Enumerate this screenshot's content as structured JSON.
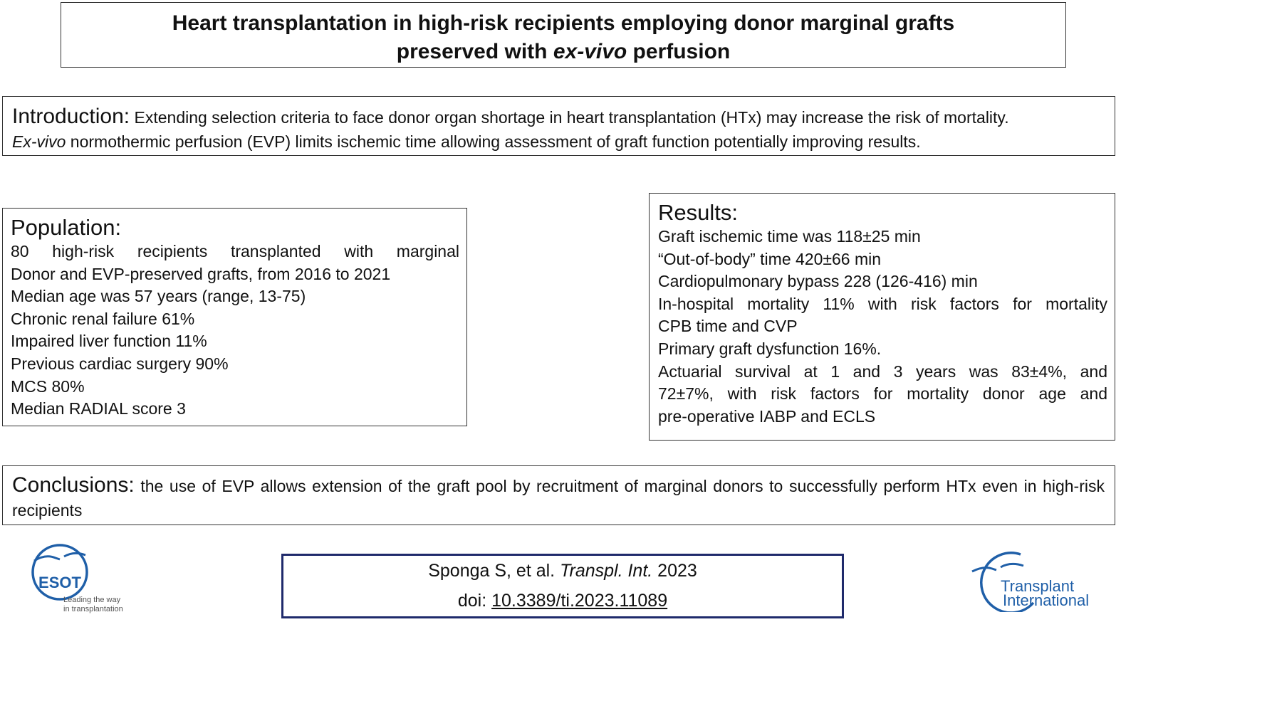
{
  "title": {
    "line1": "Heart transplantation in high-risk recipients employing donor marginal grafts",
    "line2_pre": "preserved with ",
    "line2_em": "ex-vivo",
    "line2_post": " perfusion"
  },
  "introduction": {
    "heading": "Introduction:",
    "text1": " Extending selection criteria to face donor organ shortage in heart transplantation (HTx) may increase the risk of mortality.",
    "text2_em": "Ex-vivo",
    "text2": " normothermic perfusion (EVP) limits ischemic time allowing assessment of graft function potentially improving results."
  },
  "population": {
    "heading": "Population:",
    "lines": [
      "80 high-risk recipients transplanted with marginal",
      "Donor and EVP-preserved grafts, from 2016 to 2021",
      "Median age was 57 years (range, 13-75)",
      "Chronic renal failure 61%",
      "Impaired liver function 11%",
      "Previous cardiac surgery 90%",
      "MCS 80%",
      "Median RADIAL score 3"
    ]
  },
  "results": {
    "heading": "Results:",
    "lines": [
      "Graft ischemic time was 118±25 min",
      "“Out-of-body” time 420±66 min",
      "Cardiopulmonary bypass 228 (126-416) min",
      "In-hospital mortality 11% with risk factors for mortality",
      "CPB time and CVP",
      "Primary graft dysfunction 16%.",
      "Actuarial survival at 1 and 3 years was 83±4%, and",
      "72±7%, with risk factors for mortality donor age and",
      "pre-operative IABP and ECLS"
    ]
  },
  "conclusions": {
    "heading": "Conclusions:",
    "text": " the use of EVP allows extension of the graft pool by recruitment of marginal donors to successfully perform HTx even in high-risk recipients"
  },
  "citation": {
    "authors": "Sponga S, et al. ",
    "journal": "Transpl. Int.",
    "year": " 2023",
    "doi_label": "doi: ",
    "doi": "10.3389/ti.2023.11089"
  },
  "logos": {
    "esot_name": "ESOT",
    "esot_tagline1": "Leading the way",
    "esot_tagline2": "in transplantation",
    "ti_word1": "Transplant",
    "ti_word2": "International"
  },
  "colors": {
    "accent_blue": "#1f5fa8",
    "citation_border": "#1f2a6b"
  }
}
